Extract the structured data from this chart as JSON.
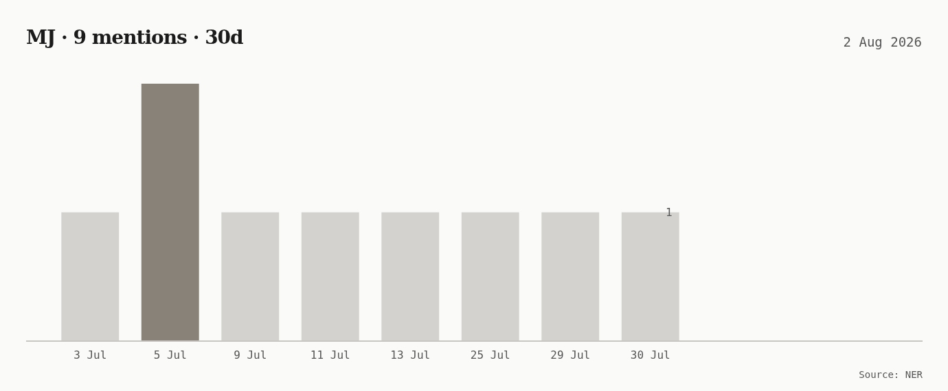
{
  "chart_data": {
    "type": "bar",
    "title": "MJ · 9 mentions · 30d",
    "subtitle": "2 Aug 2026",
    "annotations": [
      "Source: NER"
    ],
    "categories": [
      "3 Jul",
      "5 Jul",
      "9 Jul",
      "11 Jul",
      "13 Jul",
      "25 Jul",
      "29 Jul",
      "30 Jul"
    ],
    "values": [
      1,
      2,
      1,
      1,
      1,
      1,
      1,
      1
    ],
    "colors": [
      "#d3d2ce",
      "#898279",
      "#d3d2ce",
      "#d3d2ce",
      "#d3d2ce",
      "#d3d2ce",
      "#d3d2ce",
      "#d3d2ce"
    ],
    "value_labels": [
      null,
      null,
      null,
      null,
      null,
      null,
      null,
      "1"
    ],
    "ylim": [
      0,
      2
    ],
    "tick_labels": "x",
    "grid": false,
    "legend": false
  }
}
